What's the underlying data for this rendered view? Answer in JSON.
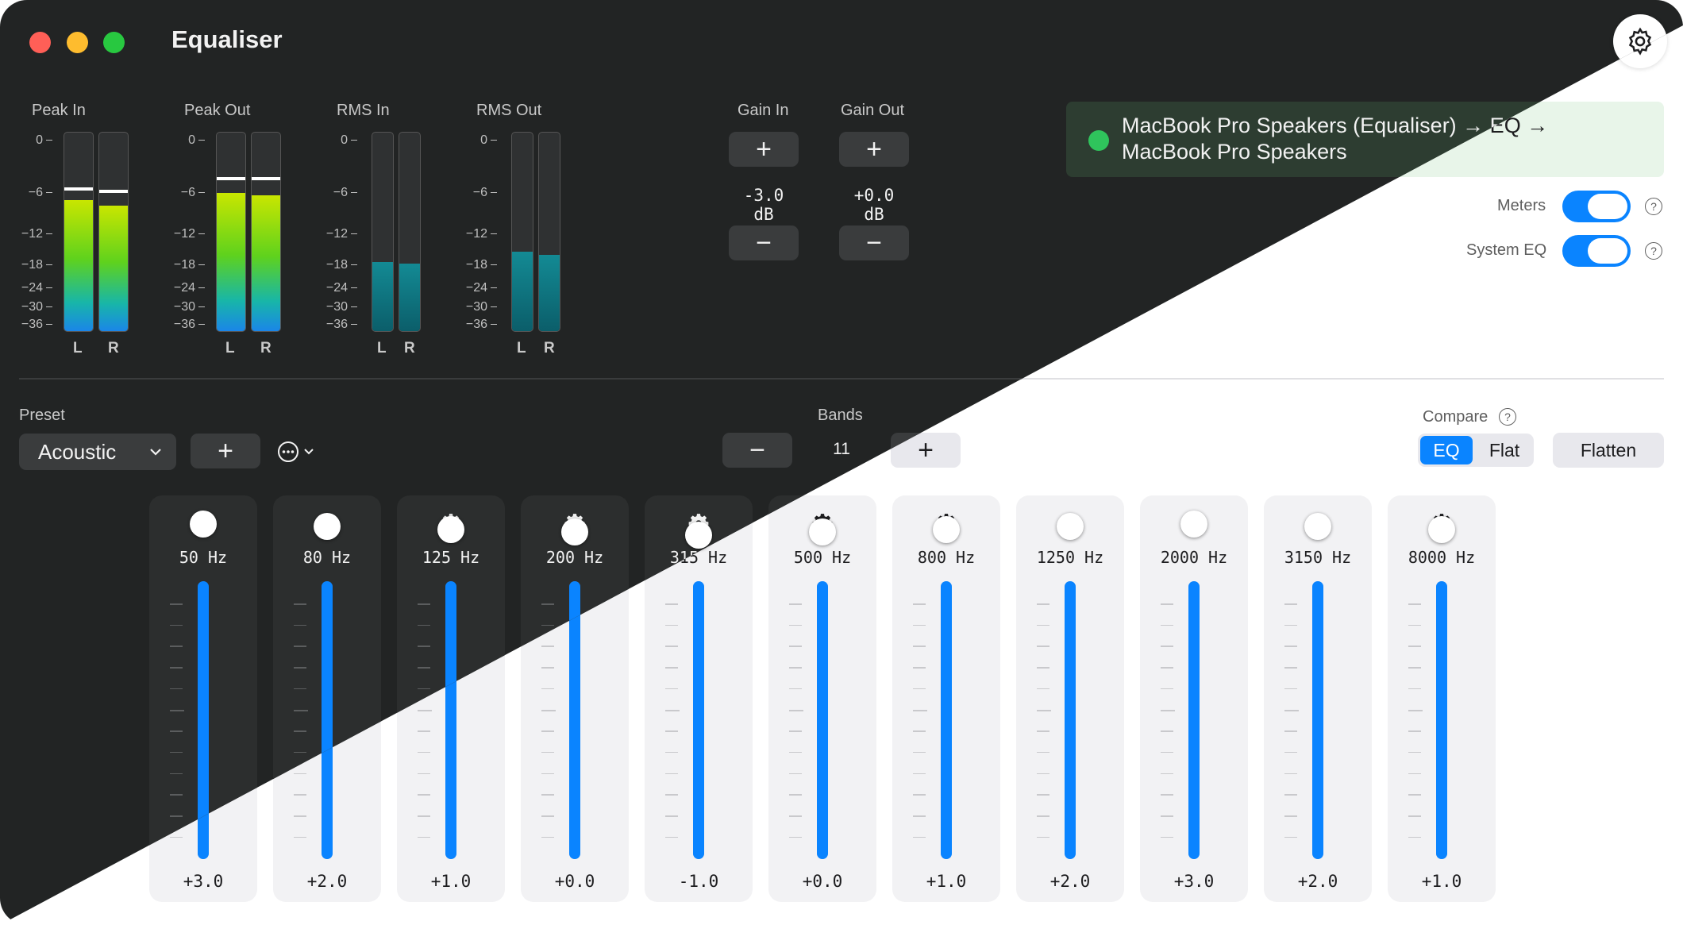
{
  "window": {
    "title": "Equaliser"
  },
  "meters": {
    "scale": [
      "0",
      "−6",
      "−12",
      "−18",
      "−24",
      "−30",
      "−36"
    ],
    "channels": [
      "L",
      "R"
    ],
    "groups": [
      {
        "label": "Peak In",
        "type": "peak",
        "levels": [
          -12,
          -13
        ],
        "holds": [
          -9.5,
          -10
        ]
      },
      {
        "label": "Peak Out",
        "type": "peak",
        "levels": [
          -10.5,
          -11
        ],
        "holds": [
          -7.5,
          -7.5
        ]
      },
      {
        "label": "RMS In",
        "type": "rms",
        "levels": [
          -24,
          -24.3
        ],
        "holds": []
      },
      {
        "label": "RMS Out",
        "type": "rms",
        "levels": [
          -22,
          -22.6
        ],
        "holds": []
      }
    ]
  },
  "gain": {
    "in_label": "Gain In",
    "out_label": "Gain Out",
    "in_value": "-3.0 dB",
    "out_value": "+0.0 dB",
    "plus": "+",
    "minus": "−"
  },
  "route": {
    "text_line1": "MacBook Pro Speakers (Equaliser) → EQ →",
    "text_line2": "MacBook Pro Speakers",
    "status_color": "#2fc45c"
  },
  "settings": {
    "meters_label": "Meters",
    "meters_on": true,
    "system_eq_label": "System EQ",
    "system_eq_on": true,
    "help": "?"
  },
  "preset": {
    "label": "Preset",
    "value": "Acoustic",
    "add": "+"
  },
  "bands": {
    "label": "Bands",
    "count": "11",
    "minus": "−",
    "plus": "+"
  },
  "compare": {
    "label": "Compare",
    "eq": "EQ",
    "flat": "Flat",
    "selected": "EQ",
    "flatten": "Flatten",
    "accent": "#0a84ff"
  },
  "eq_bands": [
    {
      "freq": "50 Hz",
      "gain": "+3.0",
      "value": 3.0
    },
    {
      "freq": "80 Hz",
      "gain": "+2.0",
      "value": 2.0
    },
    {
      "freq": "125 Hz",
      "gain": "+1.0",
      "value": 1.0
    },
    {
      "freq": "200 Hz",
      "gain": "+0.0",
      "value": 0.0
    },
    {
      "freq": "315 Hz",
      "gain": "-1.0",
      "value": -1.0
    },
    {
      "freq": "500 Hz",
      "gain": "+0.0",
      "value": 0.0
    },
    {
      "freq": "800 Hz",
      "gain": "+1.0",
      "value": 1.0
    },
    {
      "freq": "1250 Hz",
      "gain": "+2.0",
      "value": 2.0
    },
    {
      "freq": "2000 Hz",
      "gain": "+3.0",
      "value": 3.0
    },
    {
      "freq": "3150 Hz",
      "gain": "+2.0",
      "value": 2.0
    },
    {
      "freq": "8000 Hz",
      "gain": "+1.0",
      "value": 1.0
    }
  ]
}
